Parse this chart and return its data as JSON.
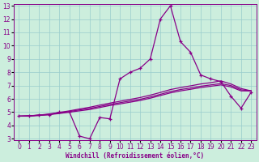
{
  "xlabel": "Windchill (Refroidissement éolien,°C)",
  "background_color": "#cceedd",
  "line_color": "#880088",
  "grid_color": "#99cccc",
  "x_values": [
    0,
    1,
    2,
    3,
    4,
    5,
    6,
    7,
    8,
    9,
    10,
    11,
    12,
    13,
    14,
    15,
    16,
    17,
    18,
    19,
    20,
    21,
    22,
    23
  ],
  "line_main_y": [
    4.7,
    4.7,
    4.8,
    4.8,
    5.0,
    5.0,
    3.2,
    3.0,
    4.6,
    4.5,
    7.5,
    8.0,
    8.3,
    9.0,
    12.0,
    13.0,
    10.3,
    9.5,
    7.8,
    7.5,
    7.3,
    6.2,
    5.3,
    6.5
  ],
  "line_smooth1_y": [
    4.7,
    4.72,
    4.75,
    4.82,
    4.9,
    5.0,
    5.1,
    5.2,
    5.35,
    5.5,
    5.62,
    5.75,
    5.88,
    6.05,
    6.25,
    6.45,
    6.6,
    6.72,
    6.85,
    6.95,
    7.05,
    6.9,
    6.6,
    6.6
  ],
  "line_smooth2_y": [
    4.7,
    4.72,
    4.76,
    4.84,
    4.94,
    5.05,
    5.17,
    5.28,
    5.43,
    5.58,
    5.71,
    5.84,
    5.97,
    6.14,
    6.34,
    6.55,
    6.7,
    6.82,
    6.95,
    7.05,
    7.15,
    7.0,
    6.68,
    6.6
  ],
  "line_smooth3_y": [
    4.7,
    4.73,
    4.78,
    4.87,
    4.98,
    5.1,
    5.24,
    5.37,
    5.53,
    5.68,
    5.82,
    5.96,
    6.1,
    6.28,
    6.48,
    6.7,
    6.85,
    6.98,
    7.12,
    7.22,
    7.35,
    7.12,
    6.78,
    6.6
  ],
  "ylim": [
    3,
    13
  ],
  "xlim": [
    -0.5,
    23.5
  ],
  "yticks": [
    3,
    4,
    5,
    6,
    7,
    8,
    9,
    10,
    11,
    12,
    13
  ],
  "xticks": [
    0,
    1,
    2,
    3,
    4,
    5,
    6,
    7,
    8,
    9,
    10,
    11,
    12,
    13,
    14,
    15,
    16,
    17,
    18,
    19,
    20,
    21,
    22,
    23
  ],
  "tick_fontsize": 5.5,
  "xlabel_fontsize": 5.5
}
